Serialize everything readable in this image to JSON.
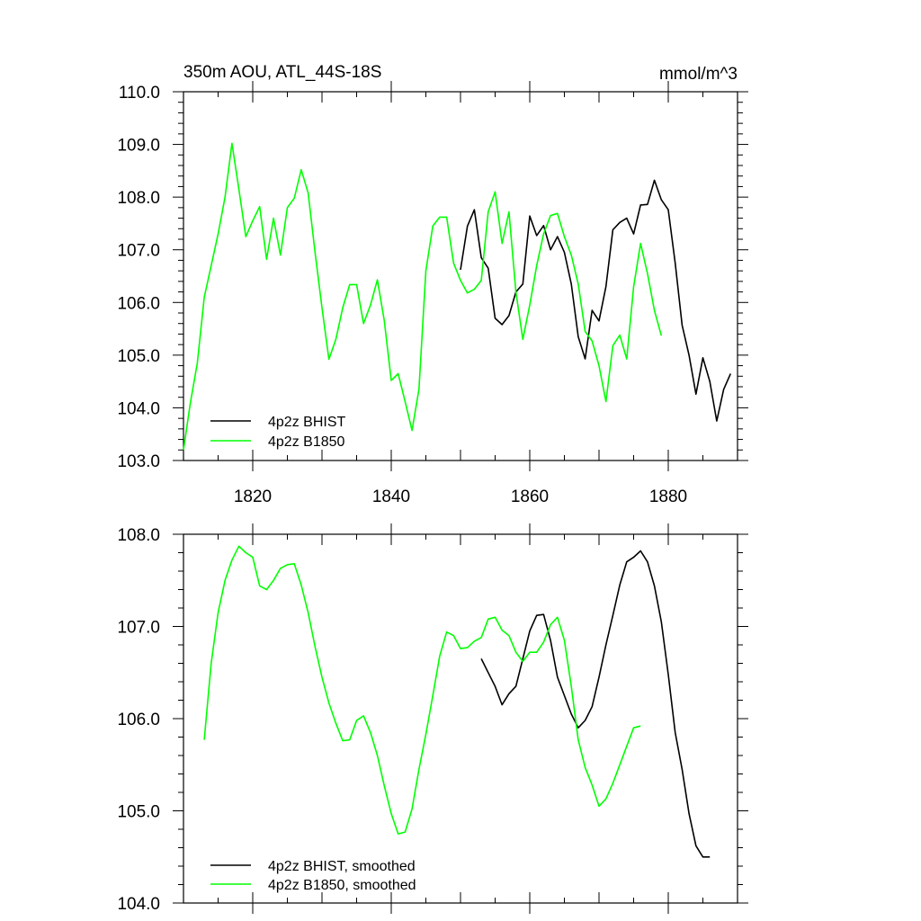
{
  "colors": {
    "bhist": "#000000",
    "b1850": "#00ff00",
    "axis": "#000000",
    "background": "#ffffff"
  },
  "chart_data": [
    {
      "type": "line",
      "title": "350m AOU, ATL_44S-18S",
      "units": "mmol/m^3",
      "xlabel": "",
      "ylabel": "",
      "xlim": [
        1810,
        1890
      ],
      "ylim": [
        103.0,
        110.0
      ],
      "x_tick_labels": [
        "1820",
        "1840",
        "1860",
        "1880"
      ],
      "y_tick_labels": [
        "103.0",
        "104.0",
        "105.0",
        "106.0",
        "107.0",
        "108.0",
        "109.0",
        "110.0"
      ],
      "grid": false,
      "legend_position": "bottom-left",
      "series": [
        {
          "name": "4p2z BHIST",
          "color": "#000000",
          "x": [
            1850,
            1851,
            1852,
            1853,
            1854,
            1855,
            1856,
            1857,
            1858,
            1859,
            1860,
            1861,
            1862,
            1863,
            1864,
            1865,
            1866,
            1867,
            1868,
            1869,
            1870,
            1871,
            1872,
            1873,
            1874,
            1875,
            1876,
            1877,
            1878,
            1879,
            1880,
            1881,
            1882,
            1883,
            1884,
            1885,
            1886,
            1887,
            1888,
            1889
          ],
          "y": [
            106.62,
            107.45,
            107.76,
            106.85,
            106.65,
            105.7,
            105.58,
            105.75,
            106.2,
            106.35,
            107.64,
            107.27,
            107.46,
            107.0,
            107.25,
            106.95,
            106.35,
            105.35,
            104.93,
            105.85,
            105.65,
            106.3,
            107.38,
            107.52,
            107.6,
            107.3,
            107.85,
            107.86,
            108.32,
            107.95,
            107.76,
            106.75,
            105.57,
            105.0,
            104.26,
            104.95,
            104.5,
            103.75,
            104.35,
            104.65
          ]
        },
        {
          "name": "4p2z B1850",
          "color": "#00ff00",
          "x": [
            1810,
            1811,
            1812,
            1813,
            1814,
            1815,
            1816,
            1817,
            1818,
            1819,
            1820,
            1821,
            1822,
            1823,
            1824,
            1825,
            1826,
            1827,
            1828,
            1829,
            1830,
            1831,
            1832,
            1833,
            1834,
            1835,
            1836,
            1837,
            1838,
            1839,
            1840,
            1841,
            1842,
            1843,
            1844,
            1845,
            1846,
            1847,
            1848,
            1849,
            1850,
            1851,
            1852,
            1853,
            1854,
            1855,
            1856,
            1857,
            1858,
            1859,
            1860,
            1861,
            1862,
            1863,
            1864,
            1865,
            1866,
            1867,
            1868,
            1869,
            1870,
            1871,
            1872,
            1873,
            1874,
            1875,
            1876,
            1877,
            1878,
            1879
          ],
          "y": [
            103.2,
            104.1,
            104.85,
            106.1,
            106.7,
            107.3,
            108.0,
            109.02,
            108.15,
            107.25,
            107.55,
            107.82,
            106.82,
            107.6,
            106.9,
            107.8,
            107.98,
            108.52,
            108.08,
            106.95,
            105.9,
            104.92,
            105.3,
            105.9,
            106.34,
            106.34,
            105.6,
            105.95,
            106.43,
            105.65,
            104.52,
            104.65,
            104.12,
            103.57,
            104.35,
            106.6,
            107.45,
            107.62,
            107.62,
            106.75,
            106.42,
            106.18,
            106.25,
            106.42,
            107.72,
            108.1,
            107.12,
            107.72,
            106.2,
            105.3,
            105.95,
            106.7,
            107.3,
            107.65,
            107.69,
            107.25,
            106.9,
            106.35,
            105.45,
            105.27,
            104.8,
            104.12,
            105.18,
            105.38,
            104.93,
            106.3,
            107.12,
            106.55,
            105.85,
            105.37
          ]
        }
      ]
    },
    {
      "type": "line",
      "title": "",
      "xlabel": "",
      "ylabel": "",
      "xlim": [
        1810,
        1890
      ],
      "ylim": [
        104.0,
        108.0
      ],
      "x_tick_labels": [],
      "y_tick_labels": [
        "104.0",
        "105.0",
        "106.0",
        "107.0",
        "108.0"
      ],
      "grid": false,
      "legend_position": "bottom-left",
      "series": [
        {
          "name": "4p2z BHIST, smoothed",
          "color": "#000000",
          "x": [
            1853,
            1854,
            1855,
            1856,
            1857,
            1858,
            1859,
            1860,
            1861,
            1862,
            1863,
            1864,
            1865,
            1866,
            1867,
            1868,
            1869,
            1870,
            1871,
            1872,
            1873,
            1874,
            1875,
            1876,
            1877,
            1878,
            1879,
            1880,
            1881,
            1882,
            1883,
            1884,
            1885,
            1886
          ],
          "y": [
            106.65,
            106.5,
            106.35,
            106.15,
            106.27,
            106.35,
            106.65,
            106.95,
            107.12,
            107.13,
            106.85,
            106.45,
            106.25,
            106.05,
            105.9,
            105.98,
            106.13,
            106.45,
            106.8,
            107.12,
            107.45,
            107.7,
            107.75,
            107.82,
            107.7,
            107.44,
            107.05,
            106.48,
            105.85,
            105.45,
            104.97,
            104.62,
            104.5,
            104.5
          ]
        },
        {
          "name": "4p2z B1850, smoothed",
          "color": "#00ff00",
          "x": [
            1813,
            1814,
            1815,
            1816,
            1817,
            1818,
            1819,
            1820,
            1821,
            1822,
            1823,
            1824,
            1825,
            1826,
            1827,
            1828,
            1829,
            1830,
            1831,
            1832,
            1833,
            1834,
            1835,
            1836,
            1837,
            1838,
            1839,
            1840,
            1841,
            1842,
            1843,
            1844,
            1845,
            1846,
            1847,
            1848,
            1849,
            1850,
            1851,
            1852,
            1853,
            1854,
            1855,
            1856,
            1857,
            1858,
            1859,
            1860,
            1861,
            1862,
            1863,
            1864,
            1865,
            1866,
            1867,
            1868,
            1869,
            1870,
            1871,
            1872,
            1873,
            1874,
            1875,
            1876
          ],
          "y": [
            105.77,
            106.6,
            107.15,
            107.5,
            107.72,
            107.87,
            107.8,
            107.75,
            107.44,
            107.4,
            107.5,
            107.63,
            107.67,
            107.68,
            107.45,
            107.15,
            106.78,
            106.45,
            106.17,
            105.95,
            105.76,
            105.77,
            105.98,
            106.03,
            105.85,
            105.6,
            105.27,
            104.97,
            104.75,
            104.77,
            105.02,
            105.45,
            105.83,
            106.25,
            106.68,
            106.94,
            106.9,
            106.76,
            106.77,
            106.84,
            106.88,
            107.08,
            107.1,
            106.96,
            106.9,
            106.72,
            106.62,
            106.72,
            106.72,
            106.83,
            107.02,
            107.1,
            106.85,
            106.35,
            105.77,
            105.47,
            105.28,
            105.05,
            105.13,
            105.3,
            105.5,
            105.7,
            105.9,
            105.92
          ]
        }
      ]
    }
  ]
}
